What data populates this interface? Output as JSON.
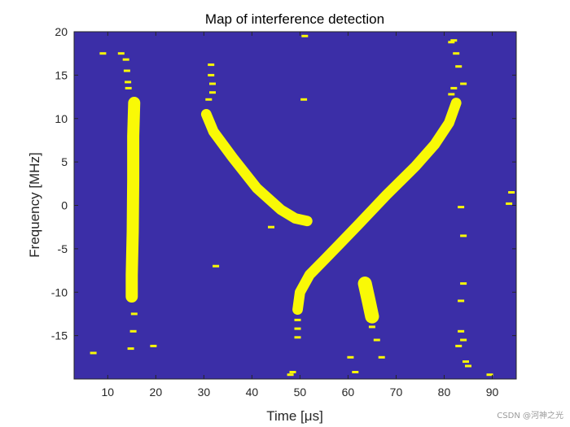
{
  "chart_data": {
    "type": "heatmap",
    "title": "Map of interference detection",
    "xlabel": "Time [μs]",
    "ylabel": "Frequency [MHz]",
    "xlim": [
      3,
      95
    ],
    "ylim": [
      -20,
      20
    ],
    "xticks": [
      10,
      20,
      30,
      40,
      50,
      60,
      70,
      80,
      90
    ],
    "yticks": [
      20,
      15,
      10,
      5,
      0,
      -5,
      -10,
      -15
    ],
    "background_color": "#3b2ea7",
    "detection_color": "#f9f906",
    "detected_regions": [
      {
        "name": "vertical-burst-15us",
        "kind": "band",
        "points": [
          [
            15.5,
            11.8
          ],
          [
            15.3,
            8
          ],
          [
            15.3,
            3
          ],
          [
            15.2,
            -3
          ],
          [
            15,
            -8
          ],
          [
            15,
            -10.5
          ]
        ],
        "width_mhz": 1.4
      },
      {
        "name": "chirp-down",
        "kind": "band",
        "points": [
          [
            30.5,
            10.5
          ],
          [
            32,
            8.5
          ],
          [
            36,
            5.5
          ],
          [
            41,
            2
          ],
          [
            46,
            -0.5
          ],
          [
            49,
            -1.5
          ],
          [
            51.5,
            -1.8
          ]
        ],
        "width_mhz": 1.2
      },
      {
        "name": "chirp-up",
        "kind": "band",
        "points": [
          [
            49.5,
            -12
          ],
          [
            50,
            -10
          ],
          [
            52,
            -8
          ],
          [
            55,
            -6.3
          ],
          [
            58,
            -4.6
          ],
          [
            62,
            -2.3
          ],
          [
            68,
            1.2
          ],
          [
            74,
            4.5
          ],
          [
            78,
            7
          ],
          [
            81,
            9.5
          ],
          [
            82.5,
            11.8
          ]
        ],
        "width_mhz": 1.2
      },
      {
        "name": "blob-64us",
        "kind": "band",
        "points": [
          [
            63.5,
            -9
          ],
          [
            64.3,
            -11
          ],
          [
            65,
            -12.8
          ]
        ],
        "width_mhz": 1.6
      },
      {
        "name": "speckles",
        "kind": "dots",
        "points": [
          [
            9,
            17.5
          ],
          [
            12.8,
            17.5
          ],
          [
            13.8,
            16.8
          ],
          [
            14,
            15.5
          ],
          [
            14.2,
            14.2
          ],
          [
            14.3,
            13.5
          ],
          [
            15.5,
            -12.5
          ],
          [
            15.3,
            -14.5
          ],
          [
            14.8,
            -16.5
          ],
          [
            7,
            -17
          ],
          [
            19.5,
            -16.2
          ],
          [
            31.5,
            16.2
          ],
          [
            31.5,
            15
          ],
          [
            31.8,
            14
          ],
          [
            31.8,
            13
          ],
          [
            31,
            12.2
          ],
          [
            32.5,
            -7
          ],
          [
            49.5,
            -13.2
          ],
          [
            49.5,
            -14.2
          ],
          [
            49.5,
            -15.2
          ],
          [
            51,
            19.5
          ],
          [
            50.8,
            12.2
          ],
          [
            48,
            -19.5
          ],
          [
            48.5,
            -19.2
          ],
          [
            44,
            -2.5
          ],
          [
            60.5,
            -17.5
          ],
          [
            61.5,
            -19.2
          ],
          [
            66,
            -15.5
          ],
          [
            67,
            -17.5
          ],
          [
            65,
            -14
          ],
          [
            82.5,
            17.5
          ],
          [
            83,
            16
          ],
          [
            84,
            14
          ],
          [
            82,
            13.5
          ],
          [
            81.5,
            12.8
          ],
          [
            83.5,
            -0.2
          ],
          [
            84,
            -3.5
          ],
          [
            84,
            -9
          ],
          [
            83.5,
            -14.5
          ],
          [
            84,
            -15.5
          ],
          [
            83,
            -16.2
          ],
          [
            84.5,
            -18
          ],
          [
            85,
            -18.5
          ],
          [
            89.5,
            -19.5
          ],
          [
            82,
            19
          ],
          [
            81.5,
            18.8
          ],
          [
            83.5,
            -11
          ],
          [
            93.5,
            0.2
          ],
          [
            94,
            1.5
          ],
          [
            49.5,
            -10.5
          ]
        ]
      }
    ]
  },
  "watermark": "CSDN @河神之光"
}
